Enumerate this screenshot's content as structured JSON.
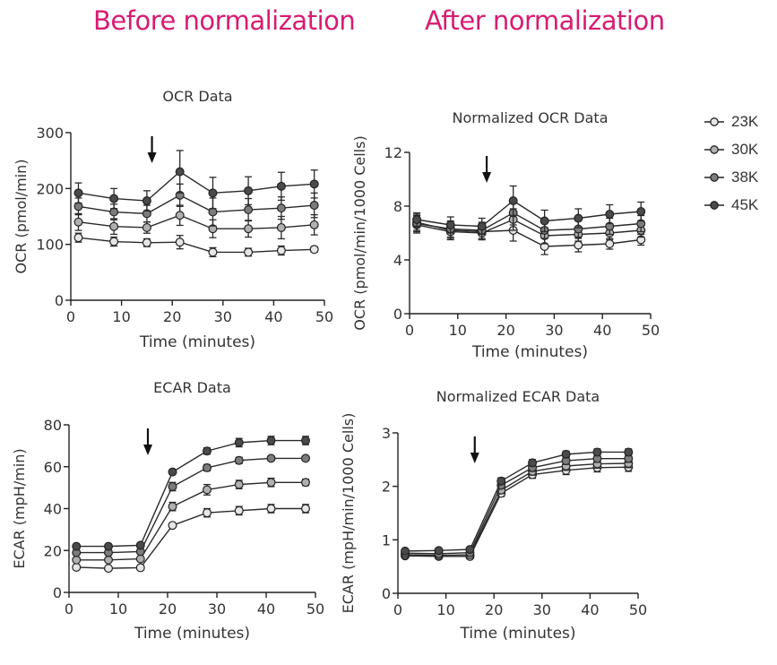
{
  "headings": {
    "before": "Before normalization",
    "after": "After normalization"
  },
  "legend": [
    {
      "label": "23K",
      "color": "#e6e6e6"
    },
    {
      "label": "30K",
      "color": "#b0b0b0"
    },
    {
      "label": "38K",
      "color": "#7c7c7c"
    },
    {
      "label": "45K",
      "color": "#4a4a4a"
    }
  ],
  "chart_data": [
    {
      "id": "ocr-raw",
      "type": "line",
      "title": "OCR Data",
      "xlabel": "Time (minutes)",
      "ylabel": "OCR (pmol/min)",
      "xlim": [
        0,
        50
      ],
      "ylim": [
        0,
        300
      ],
      "xticks": [
        0,
        10,
        20,
        30,
        40,
        50
      ],
      "yticks": [
        0,
        100,
        200,
        300
      ],
      "arrow_x": 16,
      "x": [
        1.5,
        8.5,
        15,
        21.5,
        28,
        35,
        41.5,
        48
      ],
      "series": [
        {
          "name": "23K",
          "values": [
            112,
            105,
            103,
            104,
            86,
            86,
            89,
            91
          ],
          "errors": [
            8,
            8,
            7,
            12,
            8,
            7,
            8,
            5
          ]
        },
        {
          "name": "30K",
          "values": [
            140,
            132,
            130,
            152,
            128,
            128,
            130,
            135
          ],
          "errors": [
            15,
            14,
            10,
            18,
            16,
            15,
            20,
            18
          ]
        },
        {
          "name": "38K",
          "values": [
            168,
            158,
            155,
            188,
            158,
            162,
            165,
            170
          ],
          "errors": [
            15,
            14,
            15,
            20,
            25,
            20,
            20,
            22
          ]
        },
        {
          "name": "45K",
          "values": [
            192,
            182,
            178,
            230,
            192,
            196,
            204,
            208
          ],
          "errors": [
            18,
            18,
            18,
            38,
            28,
            25,
            25,
            25
          ]
        }
      ]
    },
    {
      "id": "ocr-norm",
      "type": "line",
      "title": "Normalized OCR Data",
      "xlabel": "Time (minutes)",
      "ylabel": "OCR (pmol/min/1000 Cells)",
      "xlim": [
        0,
        50
      ],
      "ylim": [
        0,
        12
      ],
      "xticks": [
        0,
        10,
        20,
        30,
        40,
        50
      ],
      "yticks": [
        0,
        4,
        8,
        12
      ],
      "arrow_x": 16,
      "x": [
        1.5,
        8.5,
        15,
        21.5,
        28,
        35,
        41.5,
        48
      ],
      "series": [
        {
          "name": "23K",
          "values": [
            6.8,
            6.2,
            6.1,
            6.2,
            5.0,
            5.1,
            5.2,
            5.5
          ],
          "errors": [
            0.6,
            0.6,
            0.6,
            0.8,
            0.6,
            0.5,
            0.4,
            0.4
          ]
        },
        {
          "name": "30K",
          "values": [
            6.6,
            6.1,
            6.0,
            7.0,
            5.8,
            5.9,
            6.0,
            6.2
          ],
          "errors": [
            0.6,
            0.6,
            0.5,
            0.8,
            0.6,
            0.5,
            0.5,
            0.5
          ]
        },
        {
          "name": "38K",
          "values": [
            6.7,
            6.3,
            6.2,
            7.5,
            6.2,
            6.3,
            6.5,
            6.7
          ],
          "errors": [
            0.6,
            0.6,
            0.6,
            0.9,
            0.6,
            0.6,
            0.6,
            0.6
          ]
        },
        {
          "name": "45K",
          "values": [
            7.0,
            6.6,
            6.5,
            8.4,
            6.9,
            7.1,
            7.4,
            7.6
          ],
          "errors": [
            0.5,
            0.6,
            0.6,
            1.1,
            0.8,
            0.7,
            0.7,
            0.7
          ]
        }
      ]
    },
    {
      "id": "ecar-raw",
      "type": "line",
      "title": "ECAR Data",
      "xlabel": "Time (minutes)",
      "ylabel": "ECAR (mpH/min)",
      "xlim": [
        0,
        50
      ],
      "ylim": [
        0,
        80
      ],
      "xticks": [
        0,
        10,
        20,
        30,
        40,
        50
      ],
      "yticks": [
        0,
        20,
        40,
        60,
        80
      ],
      "arrow_x": 16,
      "x": [
        1.5,
        8,
        14.5,
        21,
        28,
        34.5,
        41,
        48
      ],
      "series": [
        {
          "name": "23K",
          "values": [
            12,
            11.5,
            11.8,
            32,
            38,
            39,
            40,
            40
          ],
          "errors": [
            0.5,
            0.5,
            0.5,
            1,
            2,
            2,
            2,
            2
          ]
        },
        {
          "name": "30K",
          "values": [
            15.5,
            15.5,
            16,
            41,
            49,
            51.5,
            52.5,
            52.5
          ],
          "errors": [
            0.5,
            0.5,
            0.5,
            2,
            2.5,
            2,
            2,
            1.5
          ]
        },
        {
          "name": "38K",
          "values": [
            19,
            19,
            19.5,
            50.5,
            59.5,
            63,
            64,
            64
          ],
          "errors": [
            0.5,
            0.5,
            0.5,
            2,
            1.5,
            1.5,
            1,
            1
          ]
        },
        {
          "name": "45K",
          "values": [
            22,
            22,
            22.5,
            57.5,
            67.5,
            71.5,
            72.5,
            72.5
          ],
          "errors": [
            0.5,
            0.5,
            0.5,
            1,
            1.5,
            2,
            2,
            2
          ]
        }
      ]
    },
    {
      "id": "ecar-norm",
      "type": "line",
      "title": "Normalized ECAR Data",
      "xlabel": "Time (minutes)",
      "ylabel": "ECAR (mpH/min/1000 Cells)",
      "xlim": [
        0,
        50
      ],
      "ylim": [
        0,
        3
      ],
      "xticks": [
        0,
        10,
        20,
        30,
        40,
        50
      ],
      "yticks": [
        0,
        1,
        2,
        3
      ],
      "arrow_x": 16,
      "x": [
        1.5,
        8.5,
        15,
        21.5,
        28,
        35,
        41.5,
        48
      ],
      "series": [
        {
          "name": "23K",
          "values": [
            0.7,
            0.69,
            0.69,
            1.87,
            2.22,
            2.3,
            2.35,
            2.36
          ],
          "errors": [
            0.03,
            0.03,
            0.03,
            0.06,
            0.07,
            0.08,
            0.08,
            0.08
          ]
        },
        {
          "name": "30K",
          "values": [
            0.72,
            0.71,
            0.72,
            1.93,
            2.28,
            2.38,
            2.42,
            2.43
          ],
          "errors": [
            0.03,
            0.03,
            0.03,
            0.06,
            0.07,
            0.08,
            0.08,
            0.08
          ]
        },
        {
          "name": "38K",
          "values": [
            0.75,
            0.74,
            0.76,
            2.02,
            2.35,
            2.48,
            2.52,
            2.52
          ],
          "errors": [
            0.03,
            0.03,
            0.03,
            0.06,
            0.07,
            0.07,
            0.07,
            0.07
          ]
        },
        {
          "name": "45K",
          "values": [
            0.79,
            0.8,
            0.82,
            2.1,
            2.44,
            2.6,
            2.64,
            2.64
          ],
          "errors": [
            0.03,
            0.03,
            0.03,
            0.06,
            0.06,
            0.06,
            0.06,
            0.06
          ]
        }
      ]
    }
  ]
}
